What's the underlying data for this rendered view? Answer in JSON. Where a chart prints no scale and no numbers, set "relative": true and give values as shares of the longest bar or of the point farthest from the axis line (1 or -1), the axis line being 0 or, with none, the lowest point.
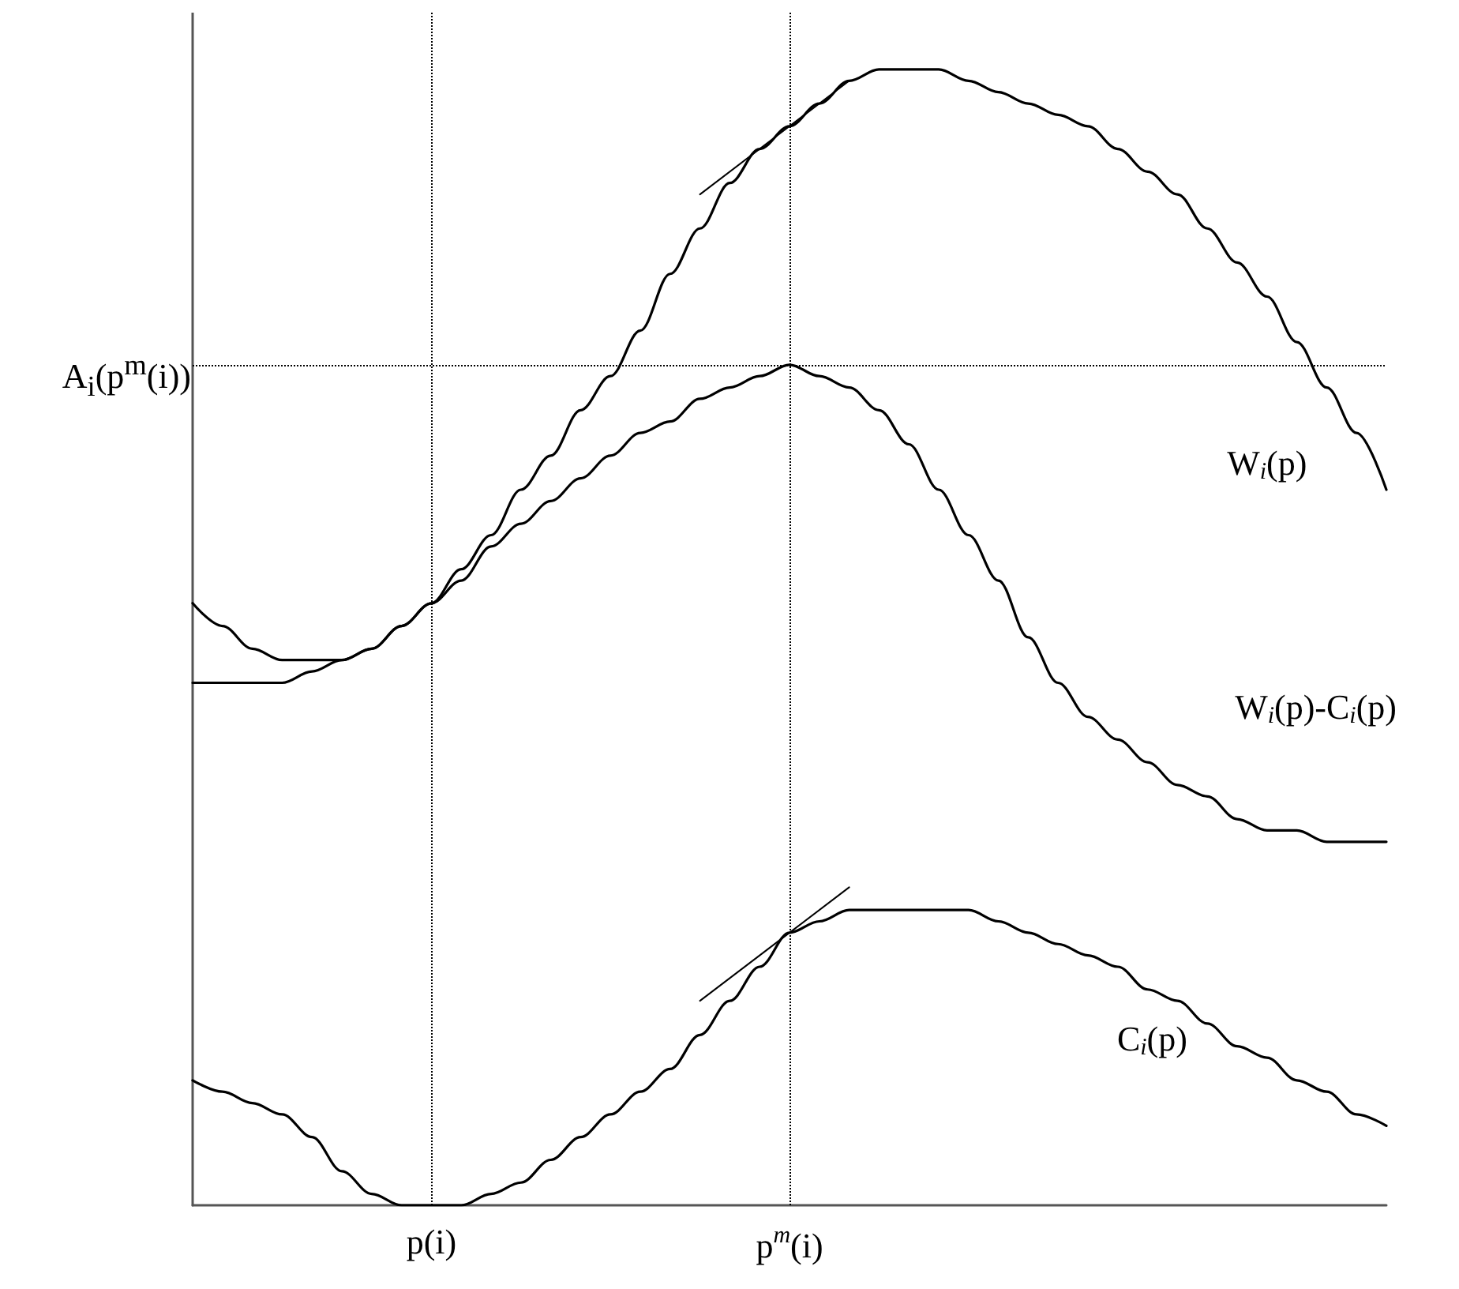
{
  "chart_data": {
    "type": "line",
    "relative": true,
    "marker": "none",
    "legend": false,
    "grid": false,
    "categories": [
      null,
      null,
      null,
      null,
      null,
      null,
      null,
      null,
      "p(i)",
      null,
      null,
      null,
      null,
      null,
      null,
      null,
      null,
      null,
      null,
      null,
      "p$^{m}$(i)",
      null,
      null,
      null,
      null,
      null,
      null,
      null,
      null,
      null,
      null,
      null,
      null,
      null,
      null,
      null,
      null,
      null,
      null,
      null,
      null
    ],
    "series": [
      {
        "name": "W$_{i}$(p)",
        "color": "#000000",
        "values": [
          0.53,
          0.51,
          0.49,
          0.48,
          0.48,
          0.48,
          0.49,
          0.51,
          0.53,
          0.56,
          0.59,
          0.63,
          0.66,
          0.7,
          0.73,
          0.77,
          0.82,
          0.86,
          0.9,
          0.93,
          0.95,
          0.97,
          0.99,
          1.0,
          1.0,
          1.0,
          0.99,
          0.98,
          0.97,
          0.96,
          0.95,
          0.93,
          0.91,
          0.89,
          0.86,
          0.83,
          0.8,
          0.76,
          0.72,
          0.68,
          0.63
        ]
      },
      {
        "name": "W$_{i}$(p)-C$_{i}$(p)",
        "color": "#000000",
        "values": [
          0.46,
          0.46,
          0.46,
          0.46,
          0.47,
          0.48,
          0.49,
          0.51,
          0.53,
          0.55,
          0.58,
          0.6,
          0.62,
          0.64,
          0.66,
          0.68,
          0.69,
          0.71,
          0.72,
          0.73,
          0.74,
          0.73,
          0.72,
          0.7,
          0.67,
          0.63,
          0.59,
          0.55,
          0.5,
          0.46,
          0.43,
          0.41,
          0.39,
          0.37,
          0.36,
          0.34,
          0.33,
          0.33,
          0.32,
          0.32,
          0.32
        ]
      },
      {
        "name": "C$_{i}$(p)",
        "color": "#000000",
        "values": [
          0.11,
          0.1,
          0.09,
          0.08,
          0.06,
          0.03,
          0.01,
          0.0,
          0.0,
          0.0,
          0.01,
          0.02,
          0.04,
          0.06,
          0.08,
          0.1,
          0.12,
          0.15,
          0.18,
          0.21,
          0.24,
          0.25,
          0.26,
          0.26,
          0.26,
          0.26,
          0.26,
          0.25,
          0.24,
          0.23,
          0.22,
          0.21,
          0.19,
          0.18,
          0.16,
          0.14,
          0.13,
          0.11,
          0.1,
          0.08,
          0.07
        ]
      },
      {
        "color": "#000000",
        "values": [
          null,
          null,
          null,
          null,
          null,
          null,
          null,
          null,
          null,
          null,
          null,
          null,
          null,
          null,
          null,
          null,
          null,
          0.89,
          null,
          null,
          0.95,
          null,
          0.99,
          null,
          null,
          null,
          null,
          null,
          null,
          null,
          null,
          null,
          null,
          null,
          null,
          null,
          null,
          null,
          null,
          null,
          null
        ]
      },
      {
        "color": "#000000",
        "values": [
          null,
          null,
          null,
          null,
          null,
          null,
          null,
          null,
          null,
          null,
          null,
          null,
          null,
          null,
          null,
          null,
          null,
          0.18,
          null,
          null,
          0.24,
          null,
          0.28,
          null,
          null,
          null,
          null,
          null,
          null,
          null,
          null,
          null,
          null,
          null,
          null,
          null,
          null,
          null,
          null,
          null,
          null
        ]
      }
    ],
    "ref_lines": [
      {
        "axis": "y",
        "value": 0.74,
        "label": "A$_{i}$(p$^{m}$(i))",
        "color": "#000000",
        "line_style": "dotted"
      },
      {
        "axis": "x",
        "value": "p(i)",
        "color": "#000000",
        "line_style": "dotted"
      },
      {
        "axis": "x",
        "value": "p$^{m}$(i)",
        "color": "#000000",
        "line_style": "dotted"
      }
    ]
  }
}
